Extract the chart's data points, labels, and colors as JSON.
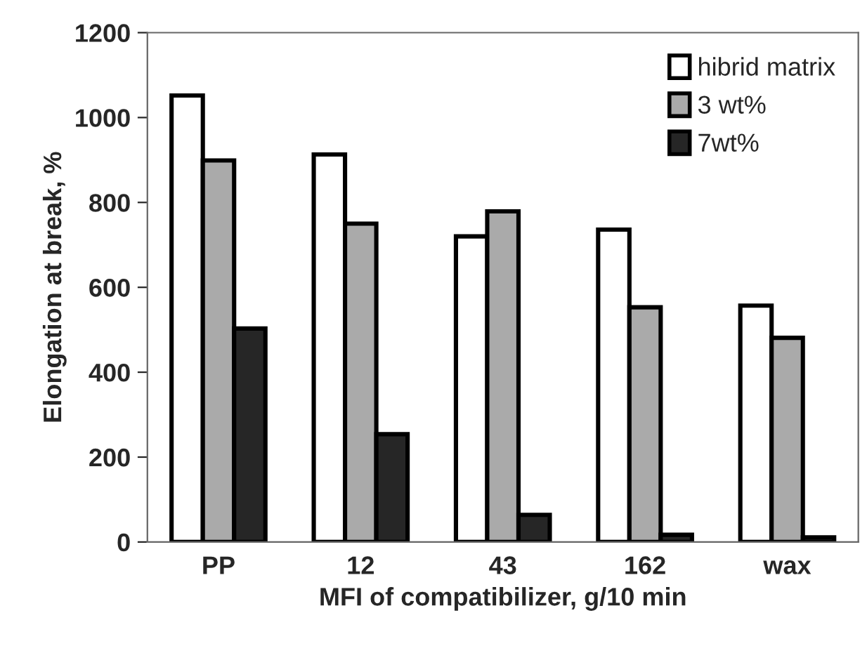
{
  "chart_data": {
    "type": "bar",
    "xlabel": "MFI of compatibilizer, g/10 min",
    "ylabel": "Elongation at break, %",
    "categories": [
      "PP",
      "12",
      "43",
      "162",
      "wax"
    ],
    "series": [
      {
        "name": "hibrid matrix",
        "color": "#ffffff",
        "values": [
          1052,
          913,
          720,
          736,
          557
        ]
      },
      {
        "name": "3 wt%",
        "color": "#aaaaaa",
        "values": [
          899,
          750,
          779,
          553,
          481
        ]
      },
      {
        "name": "7wt%",
        "color": "#262626",
        "values": [
          503,
          254,
          64,
          17,
          11
        ]
      }
    ],
    "ylim": [
      0,
      1200
    ],
    "yticks": [
      0,
      200,
      400,
      600,
      800,
      1000,
      1200
    ],
    "grid": false,
    "legend": "top right"
  }
}
